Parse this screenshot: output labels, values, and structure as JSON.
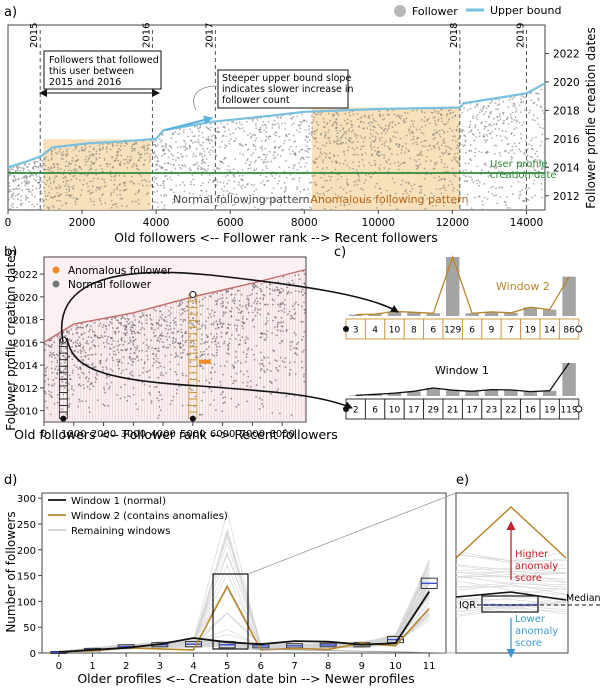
{
  "panel_labels": [
    "a)",
    "b)",
    "c)",
    "d)",
    "e)"
  ],
  "chart_data": [
    {
      "panel": "a",
      "type": "scatter",
      "xlabel": "Old followers <-- Follower rank --> Recent followers",
      "ylabel": "Follower profile creation dates",
      "xlim": [
        0,
        14500
      ],
      "ylim": [
        2011,
        2024
      ],
      "xticks": [
        0,
        2000,
        4000,
        6000,
        8000,
        10000,
        12000,
        14000
      ],
      "yticks": [
        2012,
        2014,
        2016,
        2018,
        2020,
        2022
      ],
      "legend": [
        "Follower",
        "Upper bound"
      ],
      "legend_position": "top-right",
      "upper_bound": {
        "x": [
          0,
          500,
          900,
          1200,
          2200,
          3000,
          4000,
          4200,
          5500,
          7000,
          8000,
          10000,
          12200,
          12300,
          14000,
          14500
        ],
        "y": [
          2014.0,
          2014.4,
          2014.8,
          2015.4,
          2015.7,
          2015.8,
          2016.0,
          2016.6,
          2017.2,
          2017.6,
          2017.9,
          2018.1,
          2018.2,
          2018.5,
          2019.2,
          2019.9
        ]
      },
      "reference_line": {
        "label": "User profile creation date",
        "y": 2013.6
      },
      "year_markers": [
        {
          "label": "2015",
          "x": 870
        },
        {
          "label": "2016",
          "x": 3900
        },
        {
          "label": "2017",
          "x": 5600
        },
        {
          "label": "2018",
          "x": 12200
        },
        {
          "label": "2019",
          "x": 14000
        }
      ],
      "shaded_regions": [
        [
          950,
          3850
        ],
        [
          8200,
          12200
        ]
      ],
      "region_labels": [
        {
          "text": "Normal following pattern",
          "x": 6300
        },
        {
          "text": "Anomalous following pattern",
          "x": 10300
        }
      ],
      "annotations": {
        "box1": "Followers that followed this user between 2015 and 2016",
        "box2": "Steeper upper bound slope indicates slower increase in follower count"
      }
    },
    {
      "panel": "b",
      "type": "scatter",
      "xlabel": "Old followers <-- Follower rank --> Recent followers",
      "ylabel": "Follower profile creation dates",
      "xlim": [
        0,
        8800
      ],
      "ylim": [
        2009,
        2023.5
      ],
      "xticks": [
        0,
        1000,
        2000,
        3000,
        4000,
        5000,
        6000,
        7000,
        8000
      ],
      "yticks": [
        2010,
        2012,
        2014,
        2016,
        2018,
        2020,
        2022
      ],
      "legend": [
        "Anomalous follower",
        "Normal follower"
      ],
      "legend_position": "top-left",
      "upper_bound": {
        "x": [
          0,
          1000,
          3000,
          5000,
          7000,
          8800
        ],
        "y": [
          2016.0,
          2017.6,
          2018.6,
          2020.0,
          2021.2,
          2022.4
        ]
      },
      "windows": [
        {
          "x": 650,
          "from": 2009.3,
          "to": 2016.2
        },
        {
          "x": 5000,
          "from": 2009.3,
          "to": 2020.2
        }
      ],
      "anomaly_cluster": {
        "x": [
          5200,
          5600
        ],
        "y": 2014.3
      }
    },
    {
      "panel": "c",
      "type": "bar",
      "bins": [
        "0",
        "1",
        "2",
        "3",
        "4",
        "5",
        "6",
        "7",
        "8",
        "9",
        "10",
        "11"
      ],
      "series": [
        {
          "name": "Window 2",
          "values": [
            3,
            4,
            10,
            8,
            6,
            129,
            6,
            9,
            7,
            19,
            14,
            86
          ]
        },
        {
          "name": "Window 1",
          "values": [
            2,
            6,
            10,
            17,
            29,
            21,
            17,
            23,
            22,
            16,
            19,
            119
          ]
        }
      ]
    },
    {
      "panel": "d",
      "type": "line",
      "xlabel": "Older profiles <-- Creation date bin --> Newer profiles",
      "ylabel": "Number of followers",
      "xlim": [
        -0.5,
        11.5
      ],
      "ylim": [
        0,
        310
      ],
      "xticks": [
        "0",
        "1",
        "2",
        "3",
        "4",
        "5",
        "6",
        "7",
        "8",
        "9",
        "10",
        "11"
      ],
      "yticks": [
        "0",
        "50",
        "100",
        "150",
        "200",
        "250",
        "300"
      ],
      "legend_position": "top-left",
      "series": [
        {
          "name": "Window 1 (normal)",
          "values": [
            2,
            6,
            10,
            17,
            29,
            21,
            17,
            23,
            22,
            16,
            19,
            119
          ]
        },
        {
          "name": "Window 2 (contains anomalies)",
          "values": [
            3,
            4,
            10,
            8,
            6,
            129,
            6,
            9,
            7,
            19,
            14,
            86
          ]
        },
        {
          "name": "Remaining windows"
        }
      ],
      "boxplot_ranges": [
        [
          0,
          3
        ],
        [
          4,
          9
        ],
        [
          9,
          16
        ],
        [
          12,
          20
        ],
        [
          12,
          22
        ],
        [
          10,
          22
        ],
        [
          10,
          18
        ],
        [
          10,
          18
        ],
        [
          12,
          19
        ],
        [
          12,
          20
        ],
        [
          20,
          32
        ],
        [
          125,
          145
        ]
      ]
    },
    {
      "panel": "e",
      "type": "line",
      "labels": {
        "higher": "Higher anomaly score",
        "lower": "Lower anomaly score",
        "median": "Median",
        "iqr": "IQR"
      }
    }
  ]
}
